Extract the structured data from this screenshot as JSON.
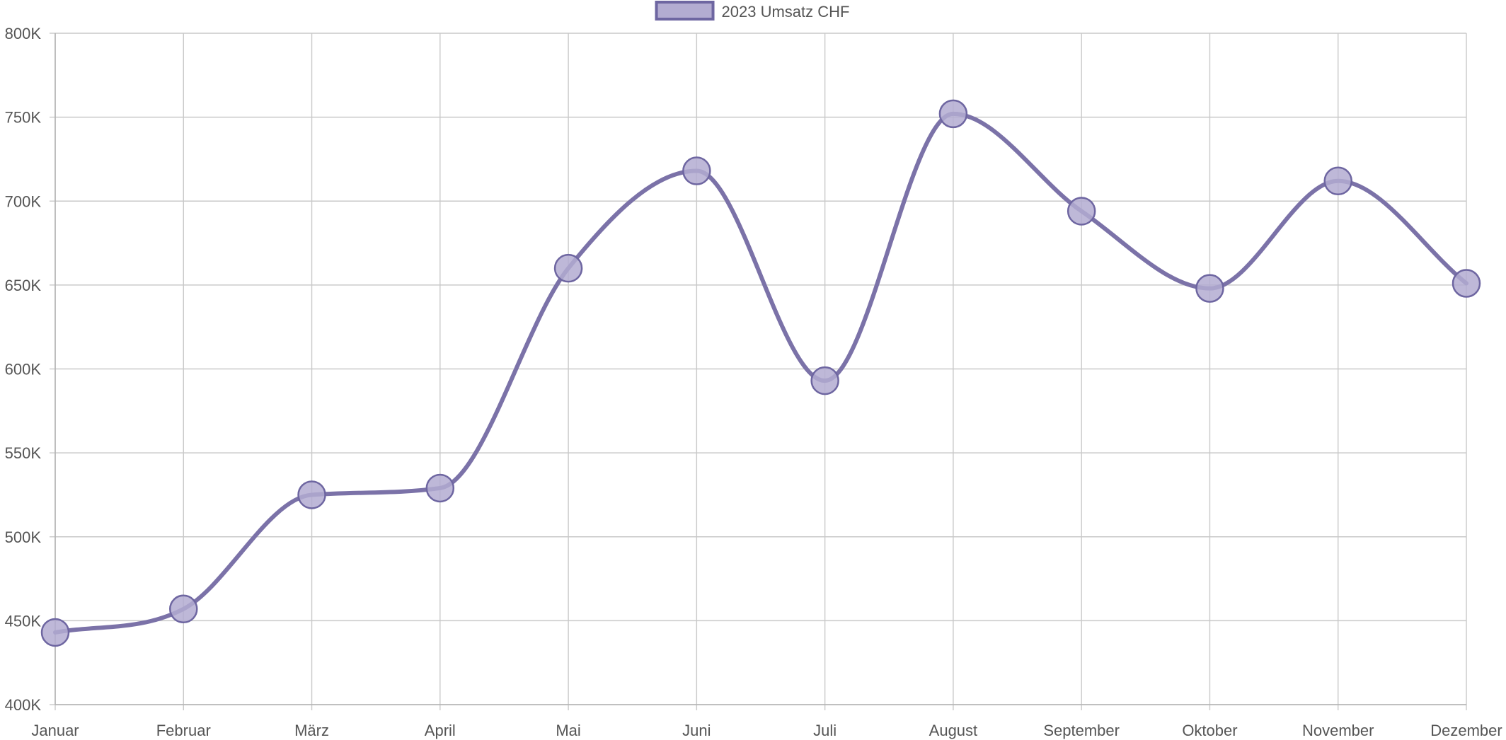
{
  "chart_data": {
    "type": "line",
    "categories": [
      "Januar",
      "Februar",
      "März",
      "April",
      "Mai",
      "Juni",
      "Juli",
      "August",
      "September",
      "Oktober",
      "November",
      "Dezember"
    ],
    "series": [
      {
        "name": "2023 Umsatz CHF",
        "values": [
          443000,
          457000,
          525000,
          529000,
          660000,
          718000,
          593000,
          752000,
          694000,
          648000,
          712000,
          651000
        ]
      }
    ],
    "ylim": [
      400000,
      800000
    ],
    "y_ticks": [
      400000,
      450000,
      500000,
      550000,
      600000,
      650000,
      700000,
      750000,
      800000
    ],
    "y_tick_labels": [
      "400K",
      "450K",
      "500K",
      "550K",
      "600K",
      "650K",
      "700K",
      "750K",
      "800K"
    ],
    "grid": true,
    "legend_position": "top-center",
    "line_smoothing": "curved",
    "colors": {
      "series_line": "#7b72a8",
      "series_fill": "#b3acd1",
      "series_point_stroke": "#6e66a1",
      "grid": "#c9c9c9",
      "text": "#555555"
    }
  }
}
